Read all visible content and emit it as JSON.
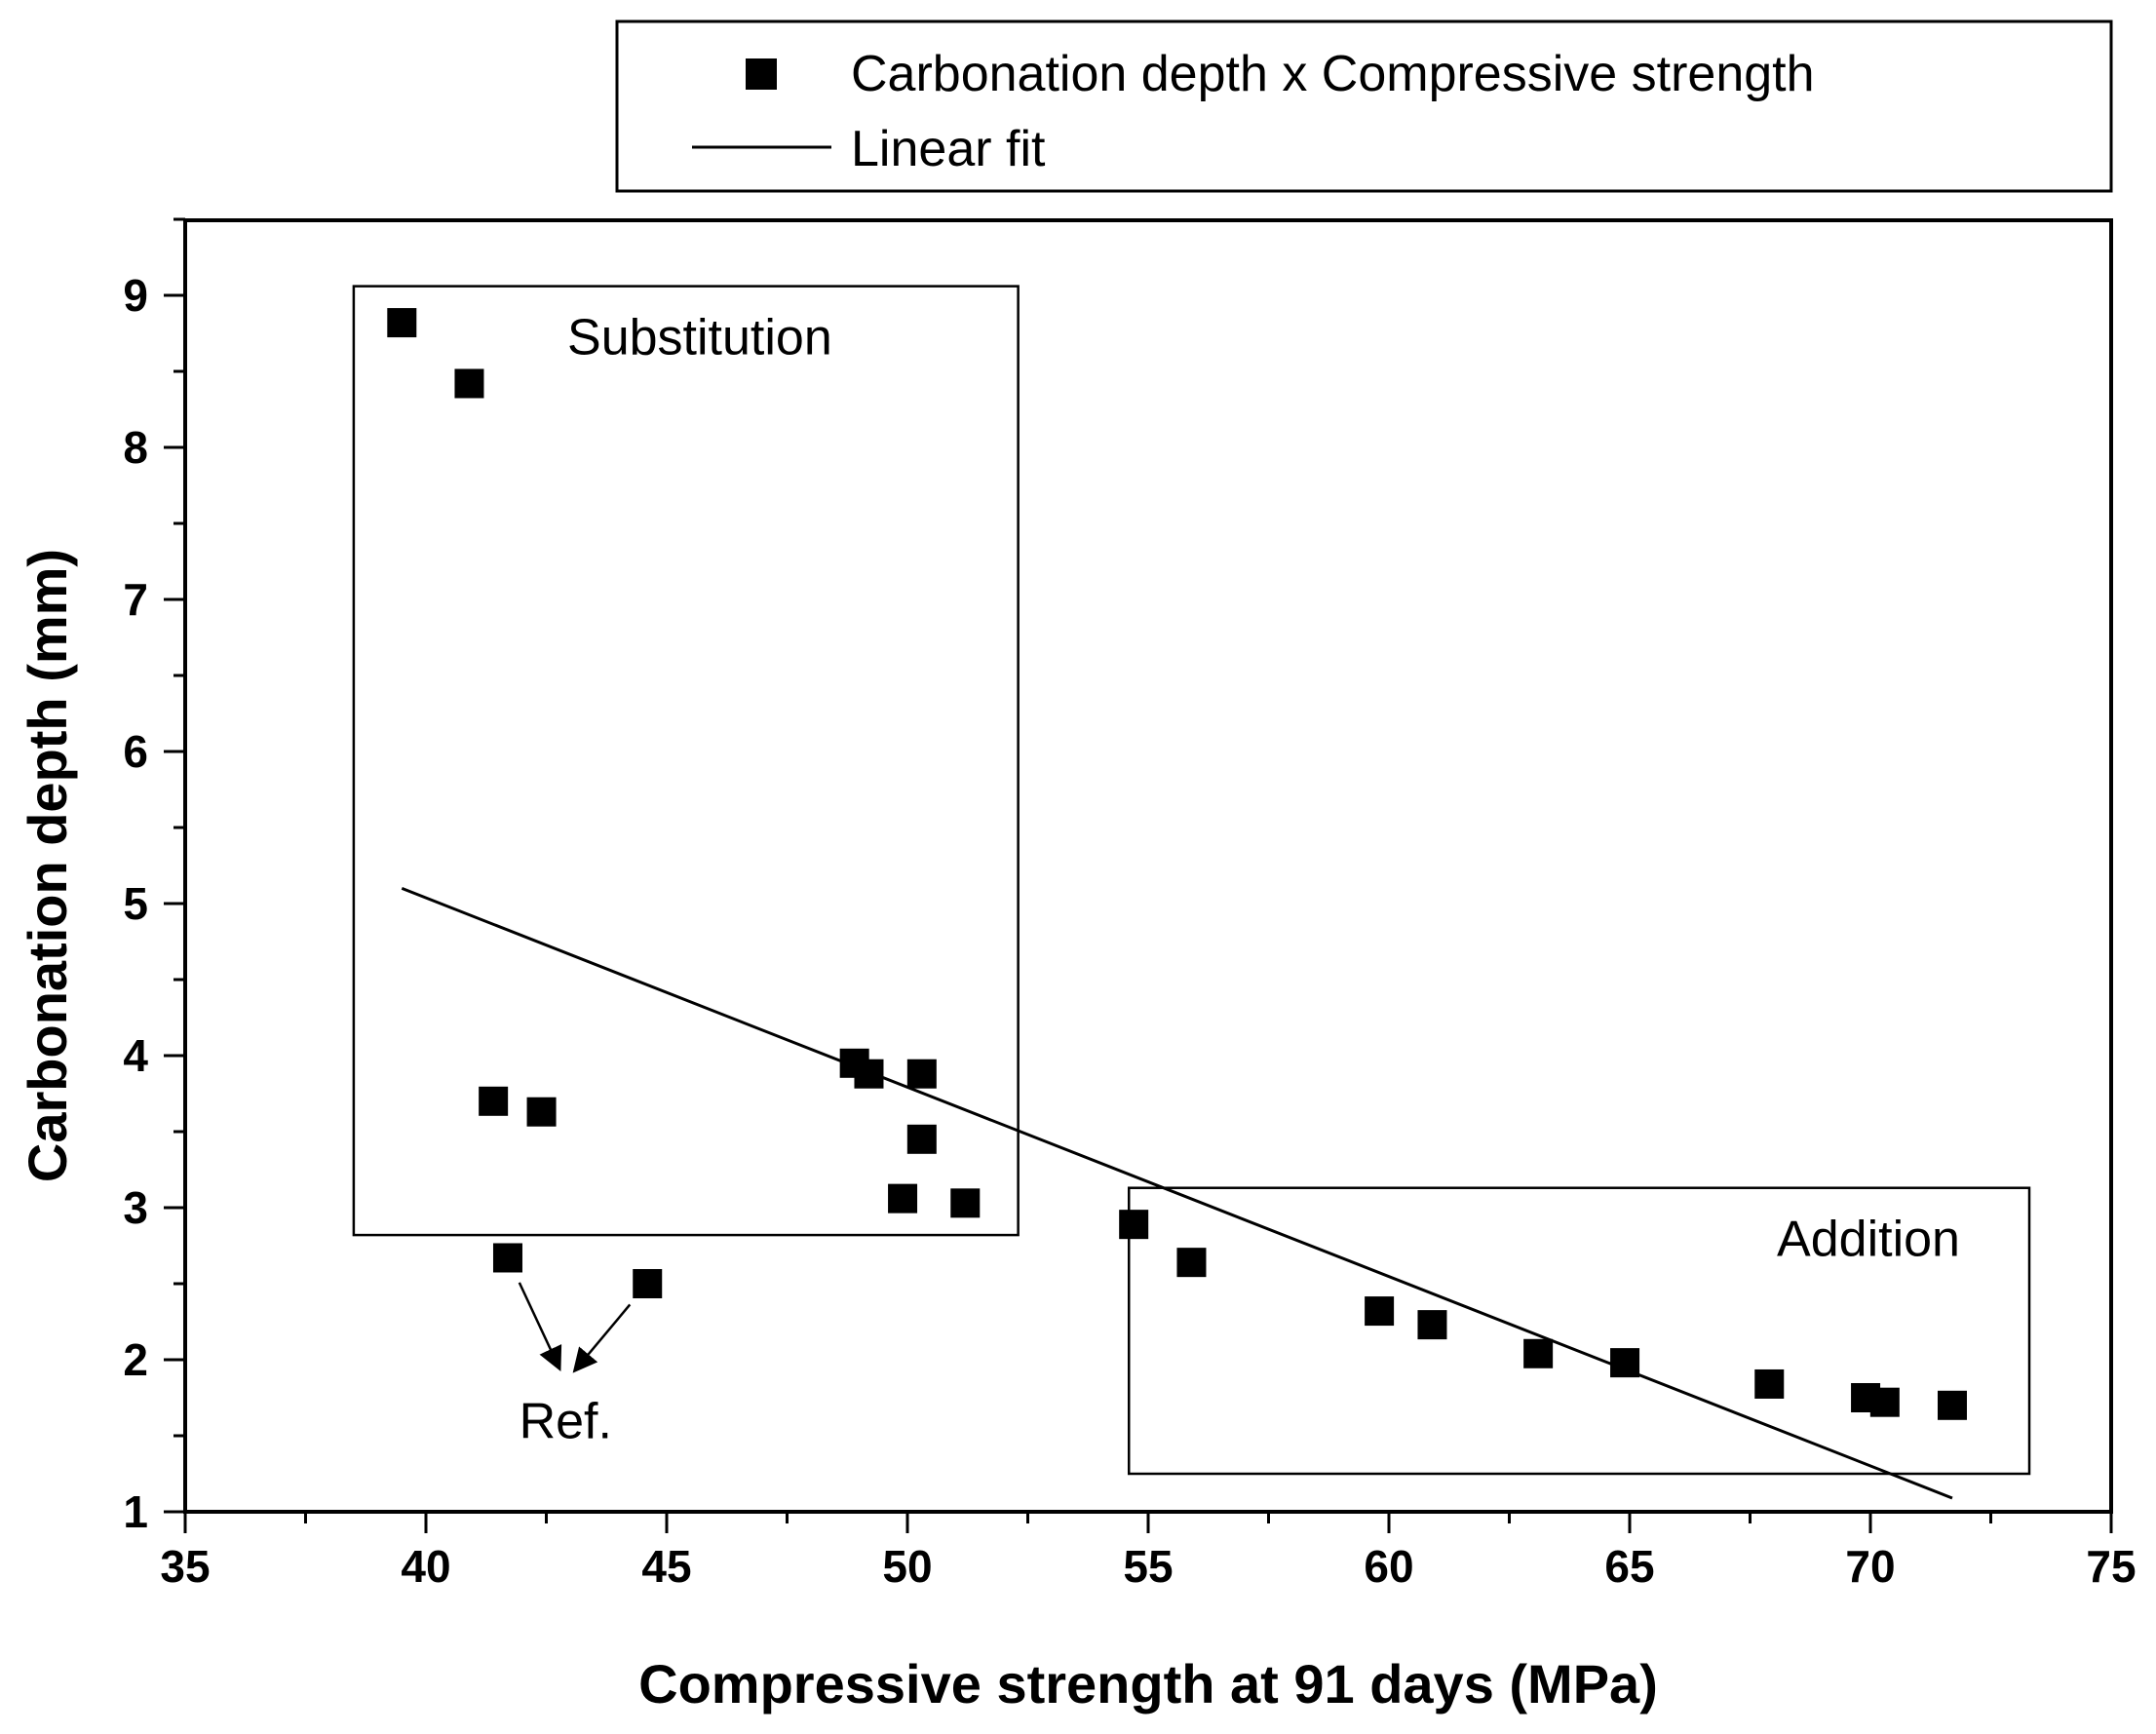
{
  "chart_data": {
    "type": "scatter",
    "title": "",
    "xlabel": "Compressive strength at 91 days (MPa)",
    "ylabel": "Carbonation depth (mm)",
    "xlim": [
      35,
      75
    ],
    "ylim": [
      1,
      9.5
    ],
    "xticks": [
      35,
      40,
      45,
      50,
      55,
      60,
      65,
      70,
      75
    ],
    "xtick_labels": [
      "35",
      "40",
      "45",
      "50",
      "55",
      "60",
      "65",
      "70",
      "75"
    ],
    "yticks": [
      1,
      2,
      3,
      4,
      5,
      6,
      7,
      8,
      9
    ],
    "ytick_labels": [
      "1",
      "2",
      "3",
      "4",
      "5",
      "6",
      "7",
      "8",
      "9"
    ],
    "grid": false,
    "legend_position": "top",
    "series": [
      {
        "name": "Carbonation depth x Compressive strength",
        "kind": "scatter",
        "marker": "square",
        "color": "#000000",
        "points": [
          {
            "x": 39.5,
            "y": 8.82
          },
          {
            "x": 40.9,
            "y": 8.42
          },
          {
            "x": 41.4,
            "y": 3.7
          },
          {
            "x": 42.4,
            "y": 3.63
          },
          {
            "x": 41.7,
            "y": 2.67
          },
          {
            "x": 44.6,
            "y": 2.5
          },
          {
            "x": 48.9,
            "y": 3.95
          },
          {
            "x": 49.2,
            "y": 3.88
          },
          {
            "x": 50.3,
            "y": 3.88
          },
          {
            "x": 50.3,
            "y": 3.45
          },
          {
            "x": 49.9,
            "y": 3.06
          },
          {
            "x": 51.2,
            "y": 3.03
          },
          {
            "x": 54.7,
            "y": 2.89
          },
          {
            "x": 55.9,
            "y": 2.64
          },
          {
            "x": 59.8,
            "y": 2.32
          },
          {
            "x": 60.9,
            "y": 2.23
          },
          {
            "x": 63.1,
            "y": 2.04
          },
          {
            "x": 64.9,
            "y": 1.98
          },
          {
            "x": 67.9,
            "y": 1.84
          },
          {
            "x": 69.9,
            "y": 1.75
          },
          {
            "x": 70.3,
            "y": 1.72
          },
          {
            "x": 71.7,
            "y": 1.7
          }
        ]
      },
      {
        "name": "Linear fit",
        "kind": "line",
        "color": "#000000",
        "points": [
          {
            "x": 39.5,
            "y": 5.1
          },
          {
            "x": 71.7,
            "y": 1.09
          }
        ]
      }
    ],
    "annotations": [
      {
        "text": "Substitution",
        "box": {
          "x": [
            38.5,
            52.3
          ],
          "y": [
            2.82,
            9.06
          ]
        }
      },
      {
        "text": "Addition",
        "box": {
          "x": [
            54.6,
            73.3
          ],
          "y": [
            1.25,
            3.13
          ]
        }
      },
      {
        "text": "Ref.",
        "at": {
          "x": 42.9,
          "y": 1.6
        },
        "arrows_to": [
          {
            "x": 41.7,
            "y": 2.67
          },
          {
            "x": 44.6,
            "y": 2.5
          }
        ]
      }
    ]
  }
}
